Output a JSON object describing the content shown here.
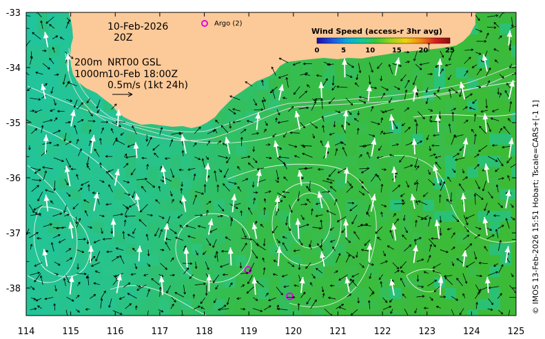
{
  "date_label": "10-Feb-2026",
  "time_label": "20Z",
  "depth_line_1": "200m",
  "depth_line_2": "1000m",
  "product_line_1": "NRT00 GSL",
  "product_line_2": "10-Feb 18:00Z",
  "scale_label": "0.5m/s (1kt 24h)",
  "argo_legend": "Argo (2)",
  "colorbar": {
    "title": "Wind Speed (access-r 3hr avg)",
    "ticks": [
      "0",
      "5",
      "10",
      "15",
      "20",
      "25"
    ],
    "colors": [
      "#1a0dab",
      "#1f4fe0",
      "#0aa8e0",
      "#10c8a0",
      "#35c83a",
      "#9ed21a",
      "#f0d010",
      "#f08a10",
      "#d81e1e",
      "#8a1010"
    ]
  },
  "x_axis": {
    "ticks": [
      "114",
      "115",
      "116",
      "117",
      "118",
      "119",
      "120",
      "121",
      "122",
      "123",
      "124",
      "125"
    ],
    "range": [
      114,
      125
    ]
  },
  "y_axis": {
    "ticks": [
      "-33",
      "-34",
      "-35",
      "-36",
      "-37",
      "-38"
    ],
    "range": [
      -38.5,
      -33
    ]
  },
  "argo_floats": [
    {
      "lon": 118.98,
      "lat": -37.67
    },
    {
      "lon": 119.92,
      "lat": -38.15
    }
  ],
  "credit": "© IMOS 13-Feb-2026 15:51 Hobart; Tscale=CARS+[-1 1]",
  "colors": {
    "land": "#fcc998",
    "argo": "#e600e6",
    "ocean_cool": "#1fc4a0",
    "ocean_warm": "#3cbb3c"
  }
}
